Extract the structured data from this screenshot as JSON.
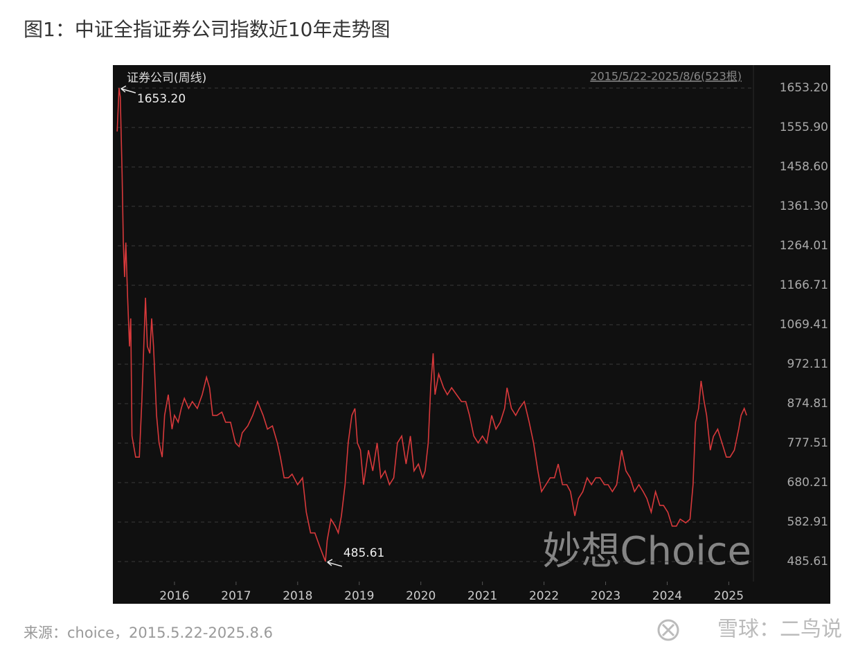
{
  "chart_data": {
    "type": "line",
    "title": "图1：中证全指证券公司指数近10年走势图",
    "panel_title": "证券公司(周线)",
    "range_label": "2015/5/22-2025/8/6(523根)",
    "watermark": "妙想Choice",
    "source": "来源：choice，2015.5.22-2025.8.6",
    "credit": "雪球：二鸟说",
    "xlim": [
      2015.0,
      2025.4
    ],
    "xticks": [
      2016,
      2017,
      2018,
      2019,
      2020,
      2021,
      2022,
      2023,
      2024,
      2025
    ],
    "ylim": [
      436,
      1708
    ],
    "yticks": [
      {
        "value": 485.61,
        "label": "485.61"
      },
      {
        "value": 582.91,
        "label": "582.91"
      },
      {
        "value": 680.21,
        "label": "680.21"
      },
      {
        "value": 777.51,
        "label": "777.51"
      },
      {
        "value": 874.81,
        "label": "874.81"
      },
      {
        "value": 972.11,
        "label": "972.11"
      },
      {
        "value": 1069.41,
        "label": "1069.41"
      },
      {
        "value": 1166.71,
        "label": "1166.71"
      },
      {
        "value": 1264.01,
        "label": "1264.01"
      },
      {
        "value": 1361.3,
        "label": "1361.30"
      },
      {
        "value": 1458.6,
        "label": "1458.60"
      },
      {
        "value": 1555.9,
        "label": "1555.90"
      },
      {
        "value": 1653.2,
        "label": "1653.20"
      }
    ],
    "grid": true,
    "annotations": [
      {
        "label": "1653.20",
        "value": 1653.2,
        "x": 2015.1
      },
      {
        "label": "485.61",
        "value": 485.61,
        "x": 2018.45
      }
    ],
    "series": [
      {
        "name": "证券公司",
        "color": "#d8393b",
        "x": [
          2015.07,
          2015.1,
          2015.12,
          2015.15,
          2015.17,
          2015.19,
          2015.21,
          2015.24,
          2015.27,
          2015.29,
          2015.31,
          2015.37,
          2015.43,
          2015.47,
          2015.53,
          2015.56,
          2015.6,
          2015.63,
          2015.66,
          2015.71,
          2015.75,
          2015.8,
          2015.84,
          2015.9,
          2015.96,
          2016.0,
          2016.06,
          2016.11,
          2016.16,
          2016.23,
          2016.29,
          2016.37,
          2016.45,
          2016.52,
          2016.57,
          2016.62,
          2016.69,
          2016.77,
          2016.83,
          2016.91,
          2016.99,
          2017.05,
          2017.1,
          2017.19,
          2017.27,
          2017.35,
          2017.44,
          2017.51,
          2017.59,
          2017.67,
          2017.72,
          2017.78,
          2017.85,
          2017.91,
          2018.0,
          2018.08,
          2018.14,
          2018.21,
          2018.28,
          2018.36,
          2018.45,
          2018.48,
          2018.54,
          2018.61,
          2018.66,
          2018.71,
          2018.77,
          2018.82,
          2018.88,
          2018.93,
          2018.97,
          2019.02,
          2019.07,
          2019.15,
          2019.22,
          2019.29,
          2019.35,
          2019.42,
          2019.49,
          2019.56,
          2019.62,
          2019.69,
          2019.76,
          2019.83,
          2019.89,
          2019.96,
          2020.03,
          2020.07,
          2020.12,
          2020.16,
          2020.2,
          2020.23,
          2020.29,
          2020.37,
          2020.43,
          2020.5,
          2020.58,
          2020.66,
          2020.73,
          2020.79,
          2020.86,
          2020.93,
          2021.0,
          2021.07,
          2021.15,
          2021.22,
          2021.29,
          2021.36,
          2021.4,
          2021.47,
          2021.54,
          2021.6,
          2021.68,
          2021.76,
          2021.83,
          2021.9,
          2021.96,
          2022.03,
          2022.1,
          2022.17,
          2022.23,
          2022.3,
          2022.37,
          2022.43,
          2022.5,
          2022.56,
          2022.63,
          2022.7,
          2022.77,
          2022.84,
          2022.91,
          2022.98,
          2023.04,
          2023.11,
          2023.18,
          2023.26,
          2023.33,
          2023.4,
          2023.47,
          2023.54,
          2023.61,
          2023.67,
          2023.74,
          2023.81,
          2023.88,
          2023.94,
          2024.01,
          2024.08,
          2024.15,
          2024.21,
          2024.3,
          2024.37,
          2024.42,
          2024.46,
          2024.51,
          2024.55,
          2024.6,
          2024.64,
          2024.7,
          2024.75,
          2024.82,
          2024.89,
          2024.96,
          2025.02,
          2025.09,
          2025.16,
          2025.2,
          2025.25,
          2025.29
        ],
        "values": [
          1546,
          1653.2,
          1631,
          1443,
          1272,
          1187,
          1272,
          1136,
          1016,
          1085,
          795,
          743,
          743,
          880,
          1136,
          1016,
          999,
          1085,
          1016,
          846,
          778,
          743,
          846,
          897,
          812,
          846,
          829,
          863,
          888,
          863,
          880,
          863,
          897,
          940,
          914,
          846,
          846,
          854,
          829,
          829,
          778,
          769,
          803,
          820,
          846,
          880,
          846,
          812,
          820,
          778,
          743,
          692,
          692,
          701,
          675,
          692,
          607,
          556,
          556,
          522,
          485.61,
          538,
          590,
          573,
          556,
          598,
          675,
          778,
          846,
          863,
          778,
          760,
          675,
          760,
          709,
          778,
          692,
          709,
          675,
          692,
          778,
          795,
          726,
          795,
          709,
          726,
          692,
          709,
          778,
          914,
          999,
          897,
          948,
          914,
          897,
          914,
          897,
          880,
          880,
          846,
          795,
          778,
          795,
          778,
          846,
          812,
          829,
          863,
          914,
          863,
          846,
          863,
          880,
          829,
          778,
          709,
          658,
          675,
          692,
          692,
          726,
          675,
          675,
          658,
          598,
          641,
          658,
          692,
          675,
          692,
          692,
          675,
          675,
          658,
          675,
          760,
          709,
          692,
          658,
          675,
          658,
          641,
          607,
          658,
          624,
          624,
          607,
          573,
          573,
          590,
          581,
          590,
          675,
          829,
          863,
          931,
          880,
          846,
          760,
          794,
          812,
          778,
          743,
          743,
          760,
          812,
          846,
          863,
          846
        ]
      }
    ]
  }
}
